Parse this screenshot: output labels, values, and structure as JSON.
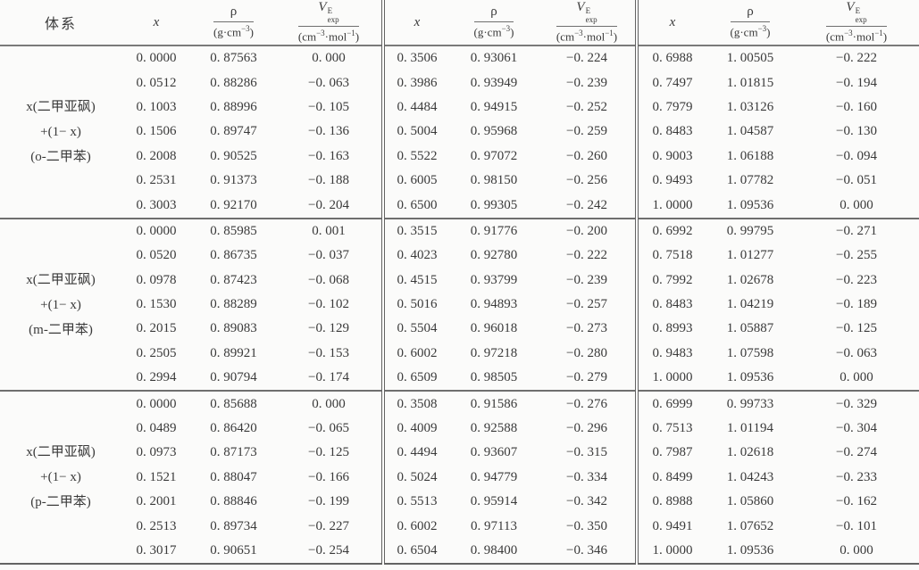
{
  "table": {
    "header": {
      "system": "体系",
      "x": "x",
      "rho": {
        "num": "ρ",
        "den_pre": "(g·cm",
        "den_sup": "−3",
        "den_post": ")"
      },
      "v": {
        "base": "V",
        "sup": "E",
        "sub": "exp",
        "den_pre": "(cm",
        "den_sup1": "−3",
        "den_mid": "·mol",
        "den_sup2": "−1",
        "den_post": ")"
      }
    },
    "groups": [
      {
        "system_lines": [
          "x(二甲亚砜)",
          "+(1− x)",
          "(o-二甲苯)"
        ],
        "rows": [
          [
            "0. 0000",
            "0. 87563",
            "0. 000",
            "0. 3506",
            "0. 93061",
            "−0. 224",
            "0. 6988",
            "1. 00505",
            "−0. 222"
          ],
          [
            "0. 0512",
            "0. 88286",
            "−0. 063",
            "0. 3986",
            "0. 93949",
            "−0. 239",
            "0. 7497",
            "1. 01815",
            "−0. 194"
          ],
          [
            "0. 1003",
            "0. 88996",
            "−0. 105",
            "0. 4484",
            "0. 94915",
            "−0. 252",
            "0. 7979",
            "1. 03126",
            "−0. 160"
          ],
          [
            "0. 1506",
            "0. 89747",
            "−0. 136",
            "0. 5004",
            "0. 95968",
            "−0. 259",
            "0. 8483",
            "1. 04587",
            "−0. 130"
          ],
          [
            "0. 2008",
            "0. 90525",
            "−0. 163",
            "0. 5522",
            "0. 97072",
            "−0. 260",
            "0. 9003",
            "1. 06188",
            "−0. 094"
          ],
          [
            "0. 2531",
            "0. 91373",
            "−0. 188",
            "0. 6005",
            "0. 98150",
            "−0. 256",
            "0. 9493",
            "1. 07782",
            "−0. 051"
          ],
          [
            "0. 3003",
            "0. 92170",
            "−0. 204",
            "0. 6500",
            "0. 99305",
            "−0. 242",
            "1. 0000",
            "1. 09536",
            "0. 000"
          ]
        ]
      },
      {
        "system_lines": [
          "x(二甲亚砜)",
          "+(1− x)",
          "(m-二甲苯)"
        ],
        "rows": [
          [
            "0. 0000",
            "0. 85985",
            "0. 001",
            "0. 3515",
            "0. 91776",
            "−0. 200",
            "0. 6992",
            "0. 99795",
            "−0. 271"
          ],
          [
            "0. 0520",
            "0. 86735",
            "−0. 037",
            "0. 4023",
            "0. 92780",
            "−0. 222",
            "0. 7518",
            "1. 01277",
            "−0. 255"
          ],
          [
            "0. 0978",
            "0. 87423",
            "−0. 068",
            "0. 4515",
            "0. 93799",
            "−0. 239",
            "0. 7992",
            "1. 02678",
            "−0. 223"
          ],
          [
            "0. 1530",
            "0. 88289",
            "−0. 102",
            "0. 5016",
            "0. 94893",
            "−0. 257",
            "0. 8483",
            "1. 04219",
            "−0. 189"
          ],
          [
            "0. 2015",
            "0. 89083",
            "−0. 129",
            "0. 5504",
            "0. 96018",
            "−0. 273",
            "0. 8993",
            "1. 05887",
            "−0. 125"
          ],
          [
            "0. 2505",
            "0. 89921",
            "−0. 153",
            "0. 6002",
            "0. 97218",
            "−0. 280",
            "0. 9483",
            "1. 07598",
            "−0. 063"
          ],
          [
            "0. 2994",
            "0. 90794",
            "−0. 174",
            "0. 6509",
            "0. 98505",
            "−0. 279",
            "1. 0000",
            "1. 09536",
            "0. 000"
          ]
        ]
      },
      {
        "system_lines": [
          "x(二甲亚砜)",
          "+(1− x)",
          "(p-二甲苯)"
        ],
        "rows": [
          [
            "0. 0000",
            "0. 85688",
            "0. 000",
            "0. 3508",
            "0. 91586",
            "−0. 276",
            "0. 6999",
            "0. 99733",
            "−0. 329"
          ],
          [
            "0. 0489",
            "0. 86420",
            "−0. 065",
            "0. 4009",
            "0. 92588",
            "−0. 296",
            "0. 7513",
            "1. 01194",
            "−0. 304"
          ],
          [
            "0. 0973",
            "0. 87173",
            "−0. 125",
            "0. 4494",
            "0. 93607",
            "−0. 315",
            "0. 7987",
            "1. 02618",
            "−0. 274"
          ],
          [
            "0. 1521",
            "0. 88047",
            "−0. 166",
            "0. 5024",
            "0. 94779",
            "−0. 334",
            "0. 8499",
            "1. 04243",
            "−0. 233"
          ],
          [
            "0. 2001",
            "0. 88846",
            "−0. 199",
            "0. 5513",
            "0. 95914",
            "−0. 342",
            "0. 8988",
            "1. 05860",
            "−0. 162"
          ],
          [
            "0. 2513",
            "0. 89734",
            "−0. 227",
            "0. 6002",
            "0. 97113",
            "−0. 350",
            "0. 9491",
            "1. 07652",
            "−0. 101"
          ],
          [
            "0. 3017",
            "0. 90651",
            "−0. 254",
            "0. 6504",
            "0. 98400",
            "−0. 346",
            "1. 0000",
            "1. 09536",
            "0. 000"
          ]
        ]
      }
    ]
  }
}
